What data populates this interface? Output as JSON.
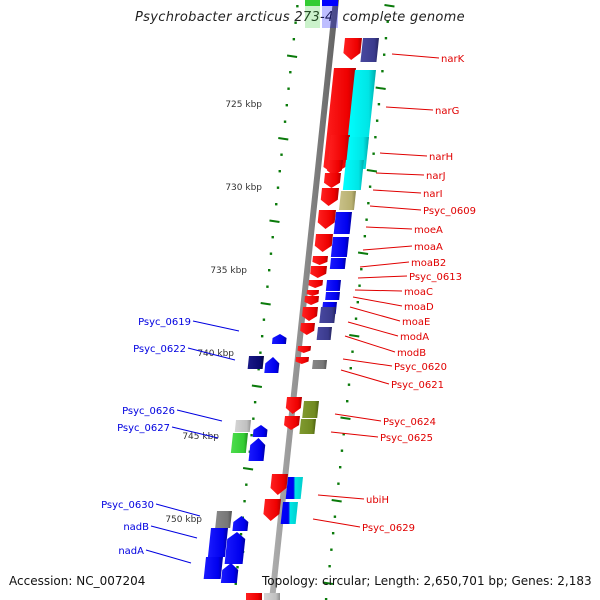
{
  "title": "Psychrobacter arcticus 273-4, complete genome",
  "footer": {
    "accession": "Accession: NC_007204",
    "topology": "Topology: circular; Length: 2,650,701 bp; Genes: 2,183"
  },
  "colors": {
    "backbone": "#8c8c8c",
    "tick": "#0a7a0a",
    "forward_label": "#e00000",
    "reverse_label": "#0000e0",
    "cds_forward": "#ff0000",
    "cds_reverse": "#0000ff",
    "cog_cyan": "#00e5e5",
    "cog_navy": "#3a3a8c",
    "cog_khaki": "#b8b070",
    "cog_olive": "#708a20",
    "cog_gray": "#777777",
    "cog_lightgray": "#c0c0c0",
    "cog_green": "#33cc33",
    "cog_darknavy": "#0a0a6e"
  },
  "scale_labels": [
    {
      "label": "725 kbp",
      "kbp": 725
    },
    {
      "label": "730 kbp",
      "kbp": 730
    },
    {
      "label": "735 kbp",
      "kbp": 735
    },
    {
      "label": "740 kbp",
      "kbp": 740
    },
    {
      "label": "745 kbp",
      "kbp": 745
    },
    {
      "label": "750 kbp",
      "kbp": 750
    }
  ],
  "forward_genes": [
    {
      "name": "narK"
    },
    {
      "name": "narG"
    },
    {
      "name": "narH"
    },
    {
      "name": "narJ"
    },
    {
      "name": "narI"
    },
    {
      "name": "Psyc_0609"
    },
    {
      "name": "moeA"
    },
    {
      "name": "moaA"
    },
    {
      "name": "moaB2"
    },
    {
      "name": "Psyc_0613"
    },
    {
      "name": "moaC"
    },
    {
      "name": "moaD"
    },
    {
      "name": "moaE"
    },
    {
      "name": "modA"
    },
    {
      "name": "modB"
    },
    {
      "name": "Psyc_0620"
    },
    {
      "name": "Psyc_0621"
    },
    {
      "name": "Psyc_0624"
    },
    {
      "name": "Psyc_0625"
    },
    {
      "name": "ubiH"
    },
    {
      "name": "Psyc_0629"
    }
  ],
  "reverse_genes": [
    {
      "name": "Psyc_0619"
    },
    {
      "name": "Psyc_0622"
    },
    {
      "name": "Psyc_0626"
    },
    {
      "name": "Psyc_0627"
    },
    {
      "name": "Psyc_0630"
    },
    {
      "name": "nadB"
    },
    {
      "name": "nadA"
    }
  ]
}
